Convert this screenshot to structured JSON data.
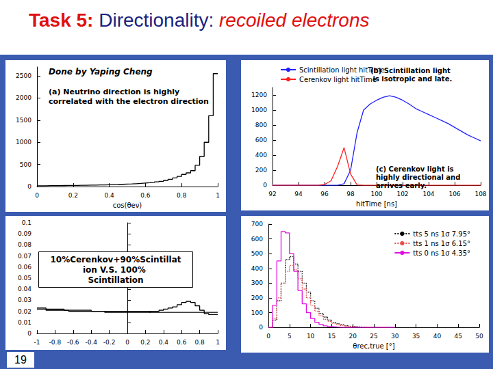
{
  "slide": {
    "title": [
      "Task 5:",
      "Directionality:",
      "recoiled electrons"
    ],
    "page_number": 19
  },
  "chart_data": [
    {
      "type": "histogram",
      "annotations": [
        "Done by Yaping Cheng",
        "(a) Neutrino direction is highly correlated with the electron direction"
      ],
      "xlabel": "cos(θeν)",
      "xlim": [
        0,
        1
      ],
      "xticks": [
        0,
        0.2,
        0.4,
        0.6,
        0.8,
        1
      ],
      "ylim": [
        0,
        2700
      ],
      "yticks": [
        0,
        500,
        1000,
        1500,
        2000,
        2500
      ],
      "grid": false,
      "bins": [
        0,
        0.025,
        0.05,
        0.075,
        0.1,
        0.125,
        0.15,
        0.175,
        0.2,
        0.225,
        0.25,
        0.275,
        0.3,
        0.325,
        0.35,
        0.375,
        0.4,
        0.425,
        0.45,
        0.475,
        0.5,
        0.525,
        0.55,
        0.575,
        0.6,
        0.625,
        0.65,
        0.675,
        0.7,
        0.725,
        0.75,
        0.775,
        0.8,
        0.825,
        0.85,
        0.875,
        0.9,
        0.925,
        0.95,
        0.975,
        1
      ],
      "values": [
        20,
        20,
        22,
        22,
        24,
        25,
        26,
        27,
        28,
        30,
        31,
        33,
        35,
        37,
        39,
        42,
        45,
        48,
        52,
        56,
        60,
        66,
        72,
        80,
        88,
        97,
        108,
        120,
        140,
        165,
        195,
        230,
        275,
        310,
        360,
        480,
        680,
        1000,
        1600,
        2550
      ],
      "color": "#000000",
      "line_style": "solid"
    },
    {
      "type": "line",
      "annotations": [
        "(b) Scintillation light is isotropic and late.",
        "(c) Cerenkov light is highly directional and arrives early."
      ],
      "xlabel": "hitTime [ns]",
      "x": [
        92,
        92.5,
        93,
        93.5,
        94,
        94.5,
        95,
        95.5,
        96,
        96.5,
        97,
        97.5,
        98,
        98.5,
        99,
        99.5,
        100,
        100.5,
        101,
        101.5,
        102,
        102.5,
        103,
        103.5,
        104,
        104.5,
        105,
        105.5,
        106,
        106.5,
        107,
        107.5,
        108
      ],
      "xlim": [
        92,
        108
      ],
      "xticks": [
        92,
        94,
        96,
        98,
        100,
        102,
        104,
        106,
        108
      ],
      "ylim": [
        0,
        1300
      ],
      "yticks": [
        0,
        200,
        400,
        600,
        800,
        1000,
        1200
      ],
      "legend": "upper left",
      "grid": false,
      "series": [
        {
          "name": "Scintillation light hitTime",
          "color": "#1f1fff",
          "line_style": "solid",
          "values": [
            0,
            0,
            0,
            0,
            0,
            0,
            0,
            0,
            0,
            0,
            0,
            20,
            200,
            700,
            1000,
            1080,
            1130,
            1170,
            1190,
            1170,
            1130,
            1080,
            1020,
            980,
            940,
            900,
            860,
            820,
            770,
            720,
            670,
            630,
            590
          ]
        },
        {
          "name": "Cerenkov light hitTime",
          "color": "#ff2020",
          "line_style": "solid",
          "values": [
            0,
            0,
            0,
            0,
            0,
            0,
            0,
            0,
            10,
            60,
            250,
            500,
            150,
            5,
            0,
            0,
            0,
            0,
            0,
            0,
            0,
            0,
            0,
            0,
            0,
            0,
            0,
            0,
            0,
            0,
            0,
            0,
            0
          ]
        }
      ]
    },
    {
      "type": "histogram",
      "annotations": [
        "10%Cerenkov+90%Scintillation V.S. 100% Scintillation"
      ],
      "xlim": [
        -1,
        1
      ],
      "xticks": [
        -1,
        -0.8,
        -0.6,
        -0.4,
        -0.2,
        0,
        0.2,
        0.4,
        0.6,
        0.8,
        1
      ],
      "ylim": [
        0,
        0.1
      ],
      "yticks": [
        0,
        0.01,
        0.02,
        0.03,
        0.04,
        0.05,
        0.06,
        0.07,
        0.08,
        0.09,
        0.1
      ],
      "grid": false,
      "bins": [
        -1,
        -0.95,
        -0.9,
        -0.85,
        -0.8,
        -0.75,
        -0.7,
        -0.65,
        -0.6,
        -0.55,
        -0.5,
        -0.45,
        -0.4,
        -0.35,
        -0.3,
        -0.25,
        -0.2,
        -0.15,
        -0.1,
        -0.05,
        0,
        0.05,
        0.1,
        0.15,
        0.2,
        0.25,
        0.3,
        0.35,
        0.4,
        0.45,
        0.5,
        0.55,
        0.6,
        0.65,
        0.7,
        0.75,
        0.8,
        0.85,
        0.9,
        0.95,
        1
      ],
      "series": [
        {
          "color": "#000000",
          "line_style": "solid",
          "values": [
            0.023,
            0.023,
            0.022,
            0.022,
            0.022,
            0.022,
            0.021,
            0.021,
            0.021,
            0.021,
            0.021,
            0.021,
            0.02,
            0.02,
            0.02,
            0.02,
            0.02,
            0.02,
            0.02,
            0.02,
            0.02,
            0.02,
            0.02,
            0.02,
            0.02,
            0.019,
            0.019,
            0.019,
            0.019,
            0.019,
            0.019,
            0.019,
            0.019,
            0.019,
            0.019,
            0.019,
            0.019,
            0.019,
            0.019,
            0.019
          ]
        },
        {
          "color": "#000000",
          "line_style": "solid",
          "values": [
            0.022,
            0.022,
            0.021,
            0.021,
            0.021,
            0.021,
            0.021,
            0.02,
            0.02,
            0.02,
            0.02,
            0.02,
            0.02,
            0.02,
            0.02,
            0.019,
            0.019,
            0.019,
            0.019,
            0.019,
            0.019,
            0.019,
            0.019,
            0.019,
            0.019,
            0.02,
            0.02,
            0.021,
            0.022,
            0.023,
            0.024,
            0.026,
            0.028,
            0.029,
            0.028,
            0.025,
            0.021,
            0.018,
            0.017,
            0.017
          ]
        }
      ]
    },
    {
      "type": "histogram",
      "xlabel": "θrec,true [°]",
      "xlim": [
        0,
        50
      ],
      "xticks": [
        0,
        5,
        10,
        15,
        20,
        25,
        30,
        35,
        40,
        45,
        50
      ],
      "ylim": [
        0,
        700
      ],
      "yticks": [
        0,
        100,
        200,
        300,
        400,
        500,
        600,
        700
      ],
      "legend": "upper right",
      "grid": false,
      "bins": [
        0,
        1,
        2,
        3,
        4,
        5,
        6,
        7,
        8,
        9,
        10,
        11,
        12,
        13,
        14,
        15,
        16,
        17,
        18,
        19,
        20,
        21,
        22,
        23,
        24,
        25,
        26,
        27,
        28,
        29,
        30
      ],
      "series": [
        {
          "name": "tts 5 ns 1σ 7.95°",
          "color": "#000000",
          "line_style": "dotted",
          "values": [
            0,
            50,
            180,
            300,
            460,
            480,
            430,
            380,
            300,
            240,
            180,
            130,
            95,
            70,
            50,
            35,
            25,
            18,
            12,
            8,
            5,
            3,
            2,
            1,
            1,
            0,
            0,
            0,
            0,
            0
          ]
        },
        {
          "name": "tts 1 ns 1σ 6.15°",
          "color": "#e8504a",
          "line_style": "dotted",
          "values": [
            0,
            60,
            200,
            300,
            380,
            420,
            390,
            330,
            260,
            200,
            150,
            110,
            80,
            55,
            40,
            28,
            20,
            12,
            8,
            5,
            3,
            2,
            1,
            1,
            0,
            0,
            0,
            0,
            0,
            0
          ]
        },
        {
          "name": "tts 0 ns 1σ 4.35°",
          "color": "#e010e0",
          "line_style": "solid",
          "values": [
            0,
            150,
            450,
            650,
            640,
            500,
            380,
            250,
            160,
            100,
            60,
            35,
            20,
            10,
            5,
            3,
            1,
            0,
            0,
            0,
            0,
            0,
            0,
            0,
            0,
            0,
            0,
            0,
            0,
            0
          ]
        }
      ]
    }
  ]
}
